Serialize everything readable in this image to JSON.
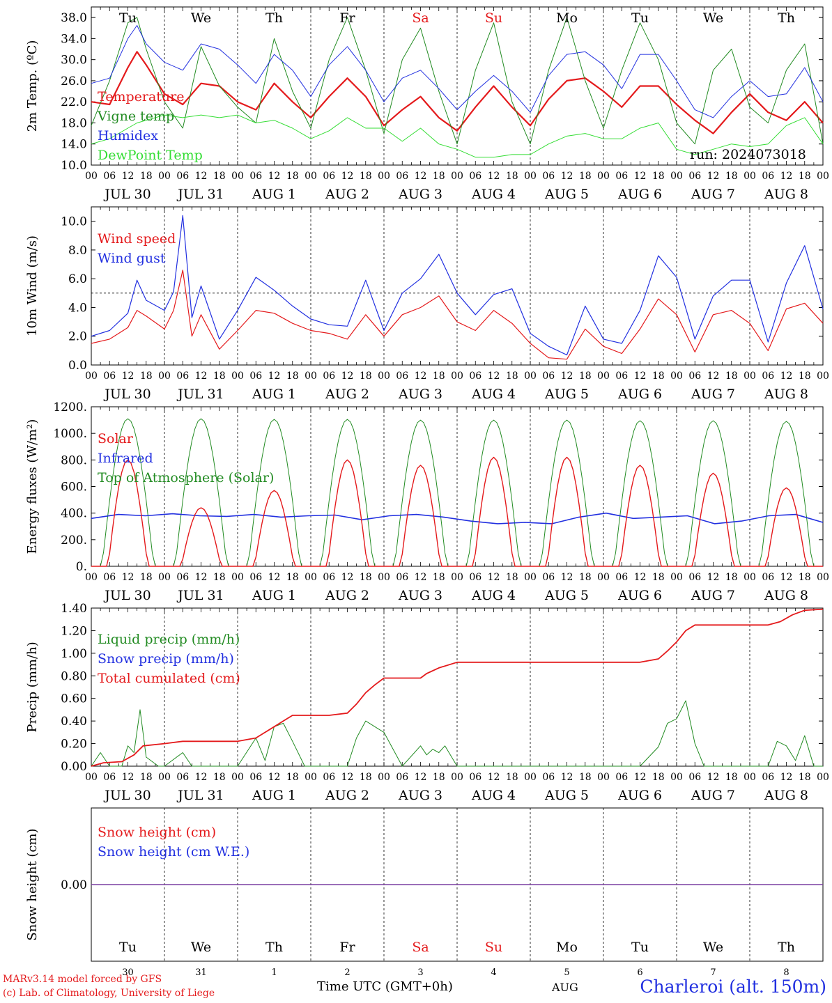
{
  "run_label": "run: 2024073018",
  "footer": {
    "model": "MARv3.14 model forced by GFS",
    "lab": "(c) Lab. of Climatology, University of Liege",
    "time_axis": "Time UTC (GMT+0h)",
    "month": "AUG",
    "station": "Charleroi (alt. 150m)"
  },
  "colors": {
    "temperature": "#e41a1c",
    "vigne": "#228b22",
    "humidex": "#2230e0",
    "dewpoint": "#33dd33",
    "weekend": "#e41a1c",
    "snow_line": "#7a3fa0"
  },
  "day_names": [
    "Tu",
    "We",
    "Th",
    "Fr",
    "Sa",
    "Su",
    "Mo",
    "Tu",
    "We",
    "Th"
  ],
  "weekend_days": [
    4,
    5
  ],
  "date_labels": [
    "JUL 30",
    "JUL 31",
    "AUG  1",
    "AUG  2",
    "AUG  3",
    "AUG  4",
    "AUG  5",
    "AUG  6",
    "AUG  7",
    "AUG  8"
  ],
  "day_numbers": [
    "30",
    "31",
    "1",
    "2",
    "3",
    "4",
    "5",
    "6",
    "7",
    "8"
  ],
  "hour_ticks": [
    "00",
    "06",
    "12",
    "18"
  ],
  "hour_tick_end": "00",
  "chart_data": [
    {
      "type": "line",
      "ylabel": "2m Temp. (ºC)",
      "ylim": [
        10,
        40
      ],
      "yticks": [
        "10.0",
        "14.0",
        "18.0",
        "22.0",
        "26.0",
        "30.0",
        "34.0",
        "38.0"
      ],
      "x_unit": "hours from 2024-07-30 00 UTC",
      "x": [
        0,
        6,
        12,
        15,
        18,
        24,
        30,
        36,
        42,
        48,
        54,
        60,
        66,
        72,
        78,
        84,
        90,
        96,
        102,
        108,
        114,
        120,
        126,
        132,
        138,
        144,
        150,
        156,
        162,
        168,
        174,
        180,
        186,
        192,
        198,
        204,
        210,
        216,
        222,
        228,
        234,
        240
      ],
      "series": [
        {
          "name": "Temperature",
          "color_key": "temperature",
          "values": [
            22,
            21.5,
            28.5,
            31.5,
            29,
            23.5,
            21.5,
            25.5,
            25,
            22,
            20.5,
            25.5,
            22,
            19,
            23,
            26.5,
            23,
            17.5,
            20.5,
            23,
            19,
            16.5,
            21,
            25,
            21,
            17.5,
            22.5,
            26,
            26.5,
            24,
            21,
            25,
            25,
            21.5,
            18.5,
            16,
            20,
            23.5,
            20,
            18.5,
            22,
            18
          ]
        },
        {
          "name": "Vigne temp",
          "color_key": "vigne",
          "values": [
            17.5,
            26,
            37,
            38,
            32,
            22,
            17,
            32.5,
            25,
            21,
            18,
            34,
            24,
            17,
            30,
            38,
            28,
            16,
            30,
            36,
            24,
            14,
            28,
            37,
            22,
            14,
            28,
            38,
            26,
            17,
            28,
            37,
            30,
            18,
            14,
            28,
            32,
            21,
            18,
            28,
            33,
            14
          ]
        },
        {
          "name": "Humidex",
          "color_key": "humidex",
          "values": [
            25.5,
            26.5,
            34,
            36.5,
            33,
            29.5,
            28,
            33,
            32,
            29,
            25.5,
            31,
            28,
            23,
            29,
            32.5,
            28,
            22,
            26.5,
            28,
            24.5,
            20.5,
            24,
            27,
            24,
            20,
            27,
            31,
            31.5,
            29,
            24.5,
            31,
            31,
            26,
            20.5,
            19,
            23,
            26,
            23,
            23.5,
            28.5,
            22
          ]
        },
        {
          "name": "DewPoint Temp",
          "color_key": "dewpoint",
          "values": [
            14,
            15,
            17,
            18,
            18.5,
            19.5,
            19,
            19.5,
            19,
            19.5,
            18,
            18.5,
            17,
            15,
            16.5,
            19,
            17,
            17,
            14.5,
            17,
            14,
            13,
            11.5,
            11.5,
            12,
            12,
            14,
            15.5,
            16,
            15,
            15,
            17,
            18,
            13,
            12,
            13,
            14,
            13.5,
            14,
            17.5,
            19,
            14
          ]
        }
      ]
    },
    {
      "type": "line",
      "ylabel": "10m Wind (m/s)",
      "ylim": [
        0,
        11
      ],
      "yticks": [
        "0.0",
        "2.0",
        "4.0",
        "6.0",
        "8.0",
        "10.0"
      ],
      "hline": 5,
      "x": [
        0,
        6,
        12,
        15,
        18,
        24,
        27,
        30,
        33,
        36,
        42,
        48,
        54,
        60,
        66,
        72,
        78,
        84,
        90,
        96,
        102,
        108,
        114,
        120,
        126,
        132,
        138,
        144,
        150,
        156,
        162,
        168,
        174,
        180,
        186,
        192,
        198,
        204,
        210,
        216,
        222,
        228,
        234,
        240
      ],
      "series": [
        {
          "name": "Wind speed",
          "color_key": "temperature",
          "values": [
            1.5,
            1.8,
            2.6,
            3.8,
            3.4,
            2.5,
            3.8,
            6.6,
            2.0,
            3.5,
            1.1,
            2.4,
            3.8,
            3.6,
            2.9,
            2.4,
            2.2,
            1.8,
            3.5,
            2.0,
            3.5,
            4.0,
            4.8,
            3.0,
            2.4,
            3.8,
            2.9,
            1.5,
            0.5,
            0.4,
            2.5,
            1.3,
            0.8,
            2.5,
            4.6,
            3.5,
            0.9,
            3.5,
            3.8,
            2.9,
            1.0,
            3.9,
            4.3,
            2.9
          ]
        },
        {
          "name": "Wind gust",
          "color_key": "humidex",
          "values": [
            2.0,
            2.4,
            3.6,
            5.9,
            4.5,
            3.8,
            5.1,
            10.4,
            3.3,
            5.5,
            1.8,
            3.8,
            6.1,
            5.2,
            4.1,
            3.2,
            2.8,
            2.7,
            5.9,
            2.4,
            5.0,
            6.0,
            7.7,
            5.0,
            3.5,
            4.9,
            5.3,
            2.2,
            1.3,
            0.7,
            4.1,
            1.8,
            1.5,
            3.8,
            7.6,
            6.1,
            1.8,
            4.8,
            5.9,
            5.9,
            1.6,
            5.7,
            8.3,
            3.9
          ]
        }
      ]
    },
    {
      "type": "line",
      "ylabel": "Energy fluxes (W/m²)",
      "ylim": [
        0,
        1200
      ],
      "yticks": [
        "0.",
        "200.",
        "400.",
        "600.",
        "800.",
        "1000.",
        "1200."
      ],
      "daily_peaks": {
        "Top of Atmosphere (Solar)": [
          1110,
          1110,
          1105,
          1105,
          1100,
          1100,
          1100,
          1095,
          1095,
          1090
        ],
        "Solar": [
          800,
          440,
          570,
          800,
          760,
          820,
          820,
          760,
          700,
          590
        ]
      },
      "series": [
        {
          "name": "Solar",
          "color_key": "temperature"
        },
        {
          "name": "Infrared",
          "color_key": "humidex",
          "values": [
            360,
            390,
            380,
            395,
            380,
            375,
            390,
            370,
            380,
            385,
            350,
            380,
            390,
            370,
            340,
            320,
            330,
            320,
            370,
            400,
            360,
            370,
            380,
            320,
            340,
            380,
            390,
            330
          ]
        },
        {
          "name": "Top of Atmosphere (Solar)",
          "color_key": "vigne"
        }
      ]
    },
    {
      "type": "line",
      "ylabel": "Precip (mm/h)",
      "ylim": [
        0,
        1.4
      ],
      "yticks": [
        "0.00",
        "0.20",
        "0.40",
        "0.60",
        "0.80",
        "1.00",
        "1.20",
        "1.40"
      ],
      "series": [
        {
          "name": "Liquid precip (mm/h)",
          "color_key": "vigne",
          "x": [
            0,
            3,
            6,
            9,
            10,
            12,
            14,
            16,
            18,
            22,
            24,
            30,
            33,
            36,
            48,
            54,
            57,
            60,
            63,
            66,
            70,
            84,
            87,
            90,
            93,
            96,
            102,
            108,
            110,
            112,
            114,
            116,
            120,
            180,
            186,
            189,
            192,
            195,
            198,
            201,
            204,
            222,
            225,
            228,
            231,
            234,
            237,
            240
          ],
          "values": [
            0,
            0.12,
            0,
            0,
            0,
            0.18,
            0.12,
            0.5,
            0.08,
            0,
            0,
            0.12,
            0,
            0,
            0,
            0.25,
            0.05,
            0.35,
            0.38,
            0.22,
            0,
            0,
            0.25,
            0.4,
            0.35,
            0.3,
            0,
            0.18,
            0.1,
            0.15,
            0.12,
            0.18,
            0,
            0,
            0.17,
            0.38,
            0.42,
            0.58,
            0.2,
            0,
            0,
            0,
            0.22,
            0.18,
            0.05,
            0.27,
            0,
            0
          ]
        },
        {
          "name": "Snow precip (mm/h)",
          "color_key": "humidex"
        },
        {
          "name": "Total cumulated (cm)",
          "color_key": "temperature",
          "x": [
            0,
            4,
            10,
            14,
            17,
            24,
            30,
            48,
            54,
            57,
            60,
            63,
            66,
            78,
            84,
            87,
            90,
            93,
            96,
            102,
            108,
            110,
            114,
            120,
            180,
            186,
            189,
            192,
            195,
            198,
            222,
            226,
            230,
            234,
            240
          ],
          "values": [
            0,
            0.03,
            0.04,
            0.1,
            0.18,
            0.2,
            0.22,
            0.22,
            0.25,
            0.3,
            0.35,
            0.4,
            0.45,
            0.45,
            0.47,
            0.55,
            0.65,
            0.72,
            0.78,
            0.78,
            0.78,
            0.82,
            0.87,
            0.92,
            0.92,
            0.95,
            1.02,
            1.1,
            1.2,
            1.25,
            1.25,
            1.28,
            1.34,
            1.38,
            1.39
          ]
        }
      ]
    },
    {
      "type": "line",
      "ylabel": "Snow height (cm)",
      "yticks": [
        "0.00"
      ],
      "series": [
        {
          "name": "Snow height (cm)",
          "color_key": "temperature",
          "values": [
            0,
            0
          ]
        },
        {
          "name": "Snow height (cm W.E.)",
          "color_key": "humidex",
          "values": [
            0,
            0
          ]
        }
      ]
    }
  ]
}
